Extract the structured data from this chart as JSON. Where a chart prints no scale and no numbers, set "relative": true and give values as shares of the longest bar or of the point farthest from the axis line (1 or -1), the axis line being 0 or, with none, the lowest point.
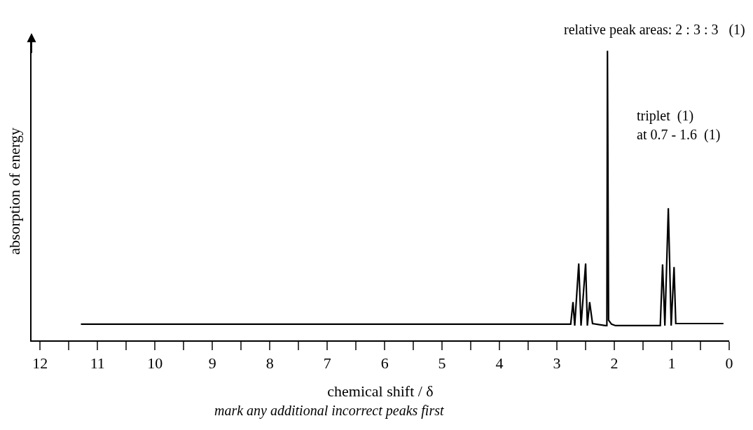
{
  "chart_data": {
    "type": "line",
    "relative": true,
    "xlabel": "chemical shift / δ",
    "ylabel": "absorption of energy",
    "x": [
      11.29,
      2.76,
      2.72,
      2.69,
      2.62,
      2.58,
      2.5,
      2.47,
      2.43,
      2.38,
      2.16,
      2.13,
      2.12,
      2.1,
      2.05,
      1.98,
      1.2,
      1.16,
      1.12,
      1.06,
      1.01,
      0.96,
      0.93,
      0.1
    ],
    "series": [
      {
        "color": "#000000",
        "values": [
          0.056,
          0.056,
          0.132,
          0.051,
          0.265,
          0.051,
          0.265,
          0.051,
          0.132,
          0.058,
          0.051,
          0.051,
          1,
          0.07,
          0.056,
          0.051,
          0.051,
          0.262,
          0.051,
          0.456,
          0.051,
          0.253,
          0.058,
          0.058
        ]
      }
    ],
    "xlim": [
      12.15,
      0
    ],
    "xticks": [
      12,
      {
        "value": 11.5,
        "label": null
      },
      11,
      {
        "value": 10.5,
        "label": null
      },
      10,
      {
        "value": 9.5,
        "label": null
      },
      9,
      {
        "value": 8.5,
        "label": null
      },
      8,
      {
        "value": 7.5,
        "label": null
      },
      7,
      {
        "value": 6.5,
        "label": null
      },
      6,
      {
        "value": 5.5,
        "label": null
      },
      5,
      {
        "value": 4.5,
        "label": null
      },
      4,
      {
        "value": 3.5,
        "label": null
      },
      3,
      {
        "value": 2.5,
        "label": null
      },
      2,
      {
        "value": 1.5,
        "label": null
      },
      1,
      {
        "value": 0.5,
        "label": null
      },
      0
    ],
    "grid": false,
    "legend": false,
    "marker": "none",
    "line_style": "solid",
    "annotations": [
      "relative peak areas: 2 : 3 : 3   (1)",
      "triplet  (1)",
      "at 0.7 - 1.6  (1)",
      "mark any additional incorrect peaks first"
    ]
  }
}
